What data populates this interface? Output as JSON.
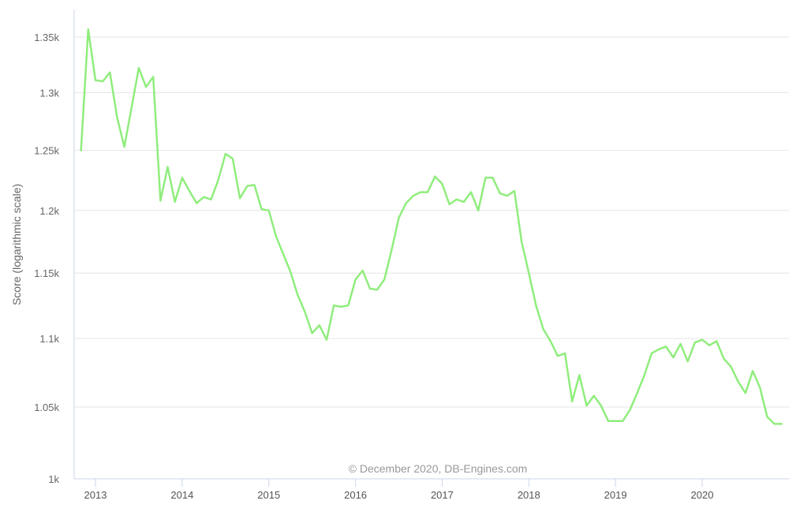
{
  "chart_data": {
    "type": "line",
    "ylabel": "Score (logarithmic scale)",
    "y_scale": "log",
    "ylim": [
      1000,
      1370
    ],
    "xlim": [
      "2012-10-01",
      "2020-12-31"
    ],
    "y_ticks": [
      {
        "value": 1000,
        "label": "1k"
      },
      {
        "value": 1050,
        "label": "1.05k"
      },
      {
        "value": 1100,
        "label": "1.1k"
      },
      {
        "value": 1150,
        "label": "1.15k"
      },
      {
        "value": 1200,
        "label": "1.2k"
      },
      {
        "value": 1250,
        "label": "1.25k"
      },
      {
        "value": 1300,
        "label": "1.3k"
      },
      {
        "value": 1350,
        "label": "1.35k"
      }
    ],
    "x_ticks": [
      {
        "date": "2013-01-01",
        "label": "2013"
      },
      {
        "date": "2014-01-01",
        "label": "2014"
      },
      {
        "date": "2015-01-01",
        "label": "2015"
      },
      {
        "date": "2016-01-01",
        "label": "2016"
      },
      {
        "date": "2017-01-01",
        "label": "2017"
      },
      {
        "date": "2018-01-01",
        "label": "2018"
      },
      {
        "date": "2019-01-01",
        "label": "2019"
      },
      {
        "date": "2020-01-01",
        "label": "2020"
      }
    ],
    "grid": true,
    "credit": "© December 2020, DB-Engines.com",
    "series": [
      {
        "color": "#90ed7d",
        "points": [
          [
            "2012-11",
            1250
          ],
          [
            "2012-12",
            1357
          ],
          [
            "2013-01",
            1311
          ],
          [
            "2013-02",
            1310
          ],
          [
            "2013-03",
            1318
          ],
          [
            "2013-04",
            1278
          ],
          [
            "2013-05",
            1253
          ],
          [
            "2013-06",
            1287
          ],
          [
            "2013-07",
            1322
          ],
          [
            "2013-08",
            1305
          ],
          [
            "2013-09",
            1314
          ],
          [
            "2013-10",
            1208
          ],
          [
            "2013-11",
            1236
          ],
          [
            "2013-12",
            1207
          ],
          [
            "2014-01",
            1227
          ],
          [
            "2014-02",
            1216
          ],
          [
            "2014-03",
            1206
          ],
          [
            "2014-04",
            1211
          ],
          [
            "2014-05",
            1209
          ],
          [
            "2014-06",
            1225
          ],
          [
            "2014-07",
            1247
          ],
          [
            "2014-08",
            1243
          ],
          [
            "2014-09",
            1210
          ],
          [
            "2014-10",
            1220
          ],
          [
            "2014-11",
            1221
          ],
          [
            "2014-12",
            1201
          ],
          [
            "2015-01",
            1200
          ],
          [
            "2015-02",
            1179
          ],
          [
            "2015-03",
            1165
          ],
          [
            "2015-04",
            1151
          ],
          [
            "2015-05",
            1133
          ],
          [
            "2015-06",
            1120
          ],
          [
            "2015-07",
            1104
          ],
          [
            "2015-08",
            1110
          ],
          [
            "2015-09",
            1099
          ],
          [
            "2015-10",
            1125
          ],
          [
            "2015-11",
            1124
          ],
          [
            "2015-12",
            1125
          ],
          [
            "2016-01",
            1145
          ],
          [
            "2016-02",
            1152
          ],
          [
            "2016-03",
            1138
          ],
          [
            "2016-04",
            1137
          ],
          [
            "2016-05",
            1145
          ],
          [
            "2016-06",
            1168
          ],
          [
            "2016-07",
            1194
          ],
          [
            "2016-08",
            1206
          ],
          [
            "2016-09",
            1212
          ],
          [
            "2016-10",
            1215
          ],
          [
            "2016-11",
            1215
          ],
          [
            "2016-12",
            1228
          ],
          [
            "2017-01",
            1222
          ],
          [
            "2017-02",
            1205
          ],
          [
            "2017-03",
            1209
          ],
          [
            "2017-04",
            1207
          ],
          [
            "2017-05",
            1215
          ],
          [
            "2017-06",
            1200
          ],
          [
            "2017-07",
            1227
          ],
          [
            "2017-08",
            1227
          ],
          [
            "2017-09",
            1214
          ],
          [
            "2017-10",
            1212
          ],
          [
            "2017-11",
            1216
          ],
          [
            "2017-12",
            1175
          ],
          [
            "2018-01",
            1150
          ],
          [
            "2018-02",
            1125
          ],
          [
            "2018-03",
            1107
          ],
          [
            "2018-04",
            1098
          ],
          [
            "2018-05",
            1087
          ],
          [
            "2018-06",
            1089
          ],
          [
            "2018-07",
            1054
          ],
          [
            "2018-08",
            1073
          ],
          [
            "2018-09",
            1051
          ],
          [
            "2018-10",
            1058
          ],
          [
            "2018-11",
            1051
          ],
          [
            "2018-12",
            1040
          ],
          [
            "2019-01",
            1040
          ],
          [
            "2019-02",
            1040
          ],
          [
            "2019-03",
            1048
          ],
          [
            "2019-04",
            1060
          ],
          [
            "2019-05",
            1073
          ],
          [
            "2019-06",
            1089
          ],
          [
            "2019-07",
            1092
          ],
          [
            "2019-08",
            1094
          ],
          [
            "2019-09",
            1086
          ],
          [
            "2019-10",
            1096
          ],
          [
            "2019-11",
            1083
          ],
          [
            "2019-12",
            1097
          ],
          [
            "2020-01",
            1099
          ],
          [
            "2020-02",
            1095
          ],
          [
            "2020-03",
            1098
          ],
          [
            "2020-04",
            1085
          ],
          [
            "2020-05",
            1079
          ],
          [
            "2020-06",
            1068
          ],
          [
            "2020-07",
            1060
          ],
          [
            "2020-08",
            1076
          ],
          [
            "2020-09",
            1064
          ],
          [
            "2020-10",
            1043
          ],
          [
            "2020-11",
            1038
          ],
          [
            "2020-12",
            1038
          ]
        ]
      }
    ]
  }
}
